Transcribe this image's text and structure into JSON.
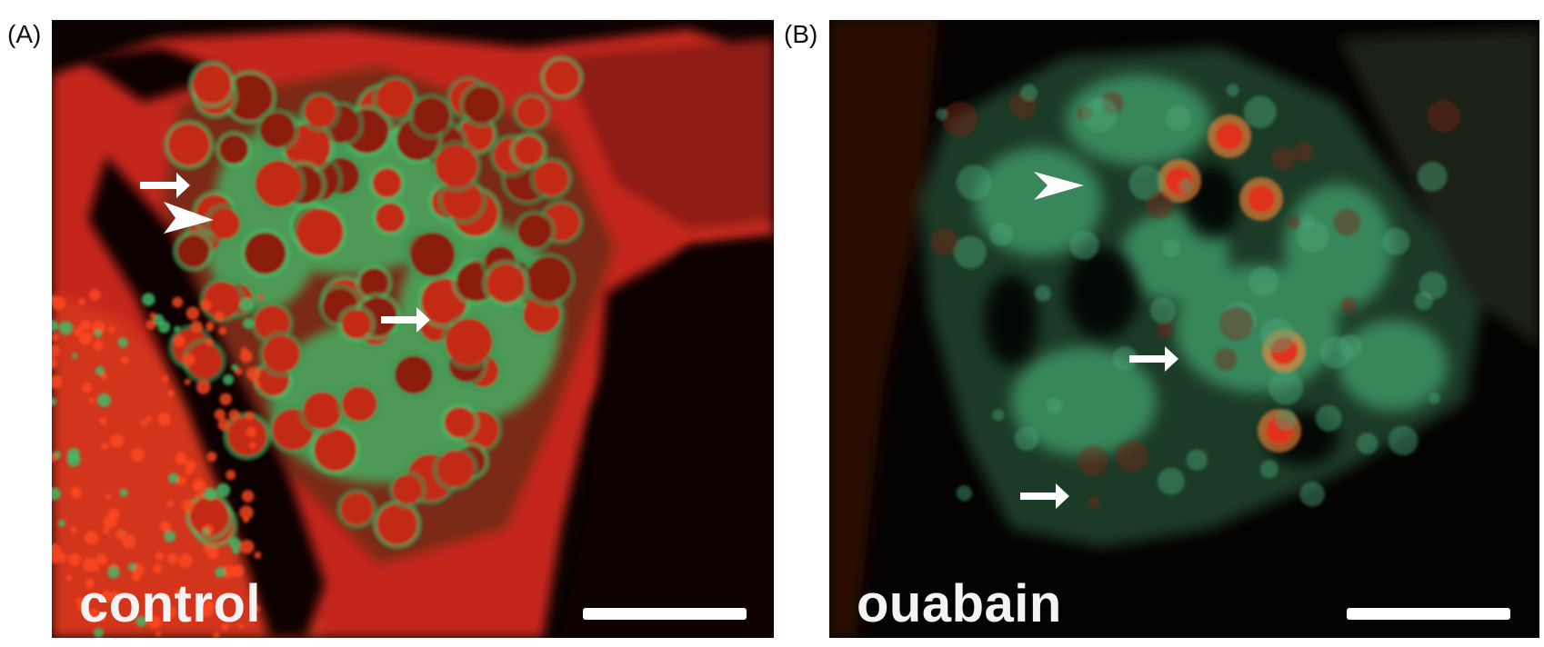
{
  "panels": [
    {
      "label": "(A)",
      "condition": "control"
    },
    {
      "label": "(B)",
      "condition": "ouabain"
    }
  ],
  "colors": {
    "red_stain": "#e0321a",
    "green_stain": "#3fbf6a",
    "background": "#050202",
    "annotation": "#ffffff"
  },
  "icons": [
    "arrow-icon",
    "arrowhead-icon",
    "scale-bar"
  ]
}
